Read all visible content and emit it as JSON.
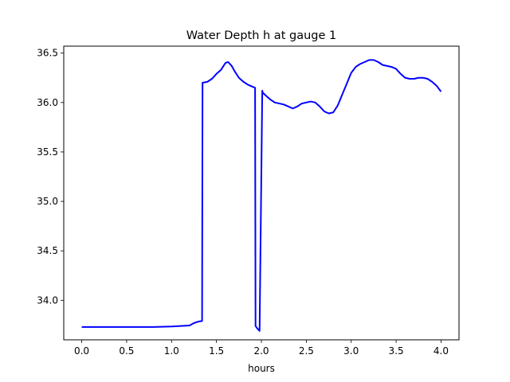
{
  "chart_data": {
    "type": "line",
    "title": "Water Depth h at gauge 1",
    "xlabel": "hours",
    "ylabel": "",
    "xlim": [
      -0.2,
      4.2
    ],
    "ylim": [
      33.6,
      36.57
    ],
    "xticks": [
      0.0,
      0.5,
      1.0,
      1.5,
      2.0,
      2.5,
      3.0,
      3.5,
      4.0
    ],
    "xtick_labels": [
      "0.0",
      "0.5",
      "1.0",
      "1.5",
      "2.0",
      "2.5",
      "3.0",
      "3.5",
      "4.0"
    ],
    "yticks": [
      34.0,
      34.5,
      35.0,
      35.5,
      36.0,
      36.5
    ],
    "ytick_labels": [
      "34.0",
      "34.5",
      "35.0",
      "35.5",
      "36.0",
      "36.5"
    ],
    "grid": false,
    "series": [
      {
        "color": "#0000ff",
        "x": [
          0.0,
          0.2,
          0.4,
          0.6,
          0.8,
          1.0,
          1.1,
          1.2,
          1.25,
          1.3,
          1.34,
          1.345,
          1.4,
          1.45,
          1.5,
          1.55,
          1.6,
          1.63,
          1.67,
          1.7,
          1.75,
          1.8,
          1.85,
          1.9,
          1.93,
          1.935,
          1.95,
          1.98,
          2.01,
          2.015,
          2.05,
          2.1,
          2.15,
          2.2,
          2.25,
          2.3,
          2.35,
          2.4,
          2.45,
          2.5,
          2.55,
          2.6,
          2.65,
          2.7,
          2.75,
          2.8,
          2.85,
          2.9,
          2.95,
          3.0,
          3.05,
          3.1,
          3.15,
          3.2,
          3.25,
          3.3,
          3.35,
          3.4,
          3.45,
          3.5,
          3.55,
          3.6,
          3.65,
          3.7,
          3.75,
          3.8,
          3.85,
          3.9,
          3.95,
          4.0
        ],
        "y": [
          33.73,
          33.73,
          33.73,
          33.73,
          33.73,
          33.735,
          33.74,
          33.745,
          33.77,
          33.785,
          33.79,
          36.2,
          36.21,
          36.24,
          36.29,
          36.33,
          36.4,
          36.41,
          36.37,
          36.32,
          36.25,
          36.21,
          36.18,
          36.16,
          36.15,
          33.74,
          33.72,
          33.69,
          36.12,
          36.1,
          36.07,
          36.03,
          36.0,
          35.99,
          35.98,
          35.96,
          35.94,
          35.96,
          35.99,
          36.0,
          36.01,
          36.0,
          35.96,
          35.91,
          35.89,
          35.9,
          35.97,
          36.08,
          36.19,
          36.3,
          36.36,
          36.39,
          36.41,
          36.43,
          36.43,
          36.41,
          36.38,
          36.37,
          36.36,
          36.34,
          36.29,
          36.25,
          36.24,
          36.24,
          36.25,
          36.25,
          36.24,
          36.21,
          36.17,
          36.11
        ]
      }
    ]
  }
}
